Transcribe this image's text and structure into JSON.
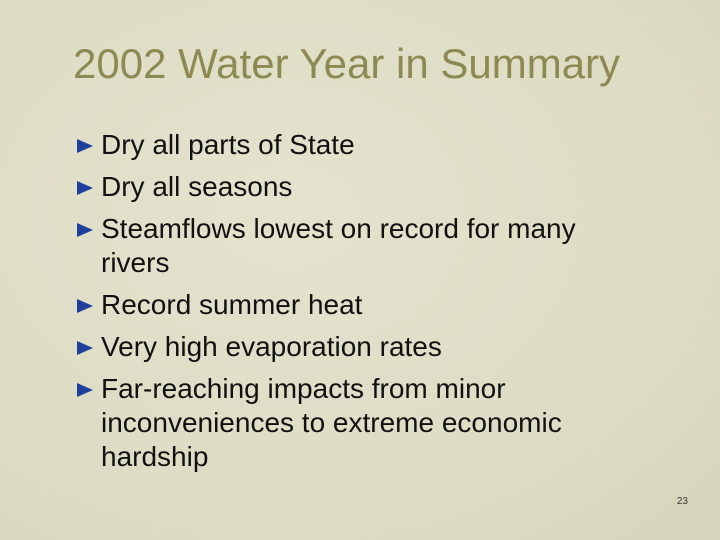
{
  "header": {
    "title": "2002 Water Year in Summary"
  },
  "bullets": [
    "Dry all parts of State",
    "Dry all seasons",
    "Steamflows lowest on record for many rivers",
    "Record summer heat",
    "Very high evaporation rates",
    "Far-reaching impacts from minor inconveniences to extreme economic hardship"
  ],
  "footer": {
    "page_number": "23"
  }
}
